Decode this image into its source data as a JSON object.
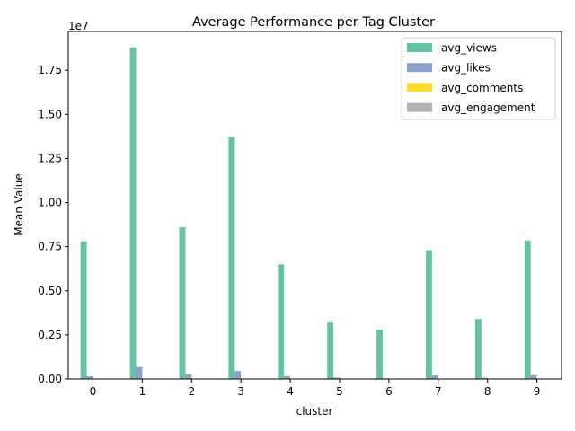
{
  "chart_data": {
    "type": "bar",
    "title": "Average Performance per Tag Cluster",
    "xlabel": "cluster",
    "ylabel": "Mean Value",
    "scale_label": "1e7",
    "categories": [
      "0",
      "1",
      "2",
      "3",
      "4",
      "5",
      "6",
      "7",
      "8",
      "9"
    ],
    "ylim": [
      0,
      1.97
    ],
    "yticks": [
      "0.00",
      "0.25",
      "0.50",
      "0.75",
      "1.00",
      "1.25",
      "1.50",
      "1.75"
    ],
    "grid": false,
    "legend_position": "top-right",
    "series": [
      {
        "name": "avg_views",
        "color": "#66c2a5",
        "values": [
          0.78,
          1.88,
          0.86,
          1.37,
          0.65,
          0.32,
          0.28,
          0.73,
          0.34,
          0.785
        ]
      },
      {
        "name": "avg_likes",
        "color": "#8da0cb",
        "values": [
          0.015,
          0.068,
          0.027,
          0.045,
          0.016,
          0.008,
          0.003,
          0.02,
          0.007,
          0.022
        ]
      },
      {
        "name": "avg_comments",
        "color": "#ffd92f",
        "values": [
          0.0003,
          0.001,
          0.0004,
          0.0008,
          0.0003,
          0.0001,
          0.0001,
          0.0003,
          0.0001,
          0.0004
        ]
      },
      {
        "name": "avg_engagement",
        "color": "#b3b3b3",
        "values": [
          0.0001,
          0.0001,
          0.0001,
          0.0001,
          0.0001,
          0.0001,
          0.0001,
          0.0001,
          0.0001,
          0.0001
        ]
      }
    ]
  }
}
